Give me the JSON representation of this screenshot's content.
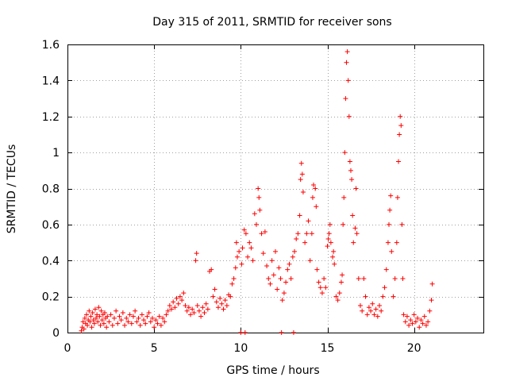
{
  "chart_data": {
    "type": "scatter",
    "title": "Day 315 of 2011, SRMTID for receiver sons",
    "xlabel": "GPS time / hours",
    "ylabel": "SRMTID / TECUs",
    "xlim": [
      0,
      24
    ],
    "ylim": [
      0,
      1.6
    ],
    "x_ticks": [
      0,
      5,
      10,
      15,
      20
    ],
    "x_tick_labels": [
      "0",
      "5",
      "10",
      "15",
      "20"
    ],
    "y_ticks": [
      0,
      0.2,
      0.4,
      0.6,
      0.8,
      1.0,
      1.2,
      1.4,
      1.6
    ],
    "y_tick_labels": [
      "0",
      "0.2",
      "0.4",
      "0.6",
      "0.8",
      "1",
      "1.2",
      "1.4",
      "1.6"
    ],
    "grid": true,
    "legend": "none",
    "marker": "plus",
    "series_color": "#ff0000",
    "points": [
      [
        0.8,
        0.01
      ],
      [
        0.85,
        0.03
      ],
      [
        0.9,
        0.06
      ],
      [
        0.95,
        0.02
      ],
      [
        1.0,
        0.08
      ],
      [
        1.05,
        0.05
      ],
      [
        1.1,
        0.1
      ],
      [
        1.15,
        0.04
      ],
      [
        1.2,
        0.07
      ],
      [
        1.25,
        0.12
      ],
      [
        1.3,
        0.06
      ],
      [
        1.35,
        0.09
      ],
      [
        1.4,
        0.03
      ],
      [
        1.45,
        0.11
      ],
      [
        1.5,
        0.07
      ],
      [
        1.55,
        0.05
      ],
      [
        1.6,
        0.13
      ],
      [
        1.65,
        0.08
      ],
      [
        1.7,
        0.1
      ],
      [
        1.75,
        0.06
      ],
      [
        1.8,
        0.14
      ],
      [
        1.85,
        0.09
      ],
      [
        1.9,
        0.04
      ],
      [
        1.95,
        0.12
      ],
      [
        2.0,
        0.07
      ],
      [
        2.05,
        0.1
      ],
      [
        2.1,
        0.05
      ],
      [
        2.15,
        0.11
      ],
      [
        2.2,
        0.08
      ],
      [
        2.25,
        0.03
      ],
      [
        2.3,
        0.09
      ],
      [
        2.4,
        0.06
      ],
      [
        2.5,
        0.1
      ],
      [
        2.6,
        0.04
      ],
      [
        2.7,
        0.08
      ],
      [
        2.8,
        0.12
      ],
      [
        2.9,
        0.05
      ],
      [
        3.0,
        0.09
      ],
      [
        3.1,
        0.07
      ],
      [
        3.2,
        0.11
      ],
      [
        3.3,
        0.04
      ],
      [
        3.4,
        0.08
      ],
      [
        3.5,
        0.06
      ],
      [
        3.6,
        0.1
      ],
      [
        3.7,
        0.05
      ],
      [
        3.8,
        0.09
      ],
      [
        3.9,
        0.12
      ],
      [
        4.0,
        0.06
      ],
      [
        4.1,
        0.08
      ],
      [
        4.2,
        0.04
      ],
      [
        4.3,
        0.1
      ],
      [
        4.4,
        0.07
      ],
      [
        4.5,
        0.05
      ],
      [
        4.6,
        0.09
      ],
      [
        4.7,
        0.11
      ],
      [
        4.8,
        0.06
      ],
      [
        4.9,
        0.08
      ],
      [
        5.0,
        0.03
      ],
      [
        5.1,
        0.07
      ],
      [
        5.2,
        0.05
      ],
      [
        5.3,
        0.09
      ],
      [
        5.4,
        0.04
      ],
      [
        5.5,
        0.08
      ],
      [
        5.6,
        0.06
      ],
      [
        5.7,
        0.1
      ],
      [
        5.8,
        0.12
      ],
      [
        5.9,
        0.15
      ],
      [
        6.0,
        0.13
      ],
      [
        6.1,
        0.17
      ],
      [
        6.2,
        0.14
      ],
      [
        6.3,
        0.19
      ],
      [
        6.4,
        0.16
      ],
      [
        6.5,
        0.2
      ],
      [
        6.6,
        0.18
      ],
      [
        6.7,
        0.22
      ],
      [
        6.8,
        0.15
      ],
      [
        6.9,
        0.12
      ],
      [
        7.0,
        0.14
      ],
      [
        7.1,
        0.1
      ],
      [
        7.2,
        0.13
      ],
      [
        7.3,
        0.11
      ],
      [
        7.4,
        0.4
      ],
      [
        7.45,
        0.44
      ],
      [
        7.5,
        0.15
      ],
      [
        7.6,
        0.12
      ],
      [
        7.7,
        0.09
      ],
      [
        7.8,
        0.14
      ],
      [
        7.9,
        0.11
      ],
      [
        8.0,
        0.16
      ],
      [
        8.1,
        0.13
      ],
      [
        8.2,
        0.34
      ],
      [
        8.3,
        0.35
      ],
      [
        8.4,
        0.2
      ],
      [
        8.5,
        0.24
      ],
      [
        8.6,
        0.17
      ],
      [
        8.7,
        0.14
      ],
      [
        8.8,
        0.19
      ],
      [
        8.9,
        0.16
      ],
      [
        9.0,
        0.13
      ],
      [
        9.1,
        0.18
      ],
      [
        9.2,
        0.15
      ],
      [
        9.3,
        0.21
      ],
      [
        9.4,
        0.2
      ],
      [
        9.5,
        0.27
      ],
      [
        9.6,
        0.3
      ],
      [
        9.7,
        0.36
      ],
      [
        9.75,
        0.5
      ],
      [
        9.8,
        0.42
      ],
      [
        9.9,
        0.45
      ],
      [
        10.0,
        0.0
      ],
      [
        10.05,
        0.38
      ],
      [
        10.1,
        0.47
      ],
      [
        10.2,
        0.57
      ],
      [
        10.25,
        0.0
      ],
      [
        10.3,
        0.55
      ],
      [
        10.4,
        0.42
      ],
      [
        10.5,
        0.5
      ],
      [
        10.6,
        0.47
      ],
      [
        10.7,
        0.4
      ],
      [
        10.8,
        0.66
      ],
      [
        10.9,
        0.6
      ],
      [
        11.0,
        0.8
      ],
      [
        11.05,
        0.75
      ],
      [
        11.1,
        0.68
      ],
      [
        11.2,
        0.55
      ],
      [
        11.3,
        0.44
      ],
      [
        11.4,
        0.56
      ],
      [
        11.5,
        0.37
      ],
      [
        11.6,
        0.3
      ],
      [
        11.7,
        0.27
      ],
      [
        11.8,
        0.4
      ],
      [
        11.9,
        0.32
      ],
      [
        12.0,
        0.45
      ],
      [
        12.1,
        0.24
      ],
      [
        12.2,
        0.36
      ],
      [
        12.3,
        0.3
      ],
      [
        12.35,
        0.0
      ],
      [
        12.4,
        0.18
      ],
      [
        12.5,
        0.22
      ],
      [
        12.6,
        0.28
      ],
      [
        12.7,
        0.35
      ],
      [
        12.8,
        0.38
      ],
      [
        12.9,
        0.3
      ],
      [
        13.0,
        0.42
      ],
      [
        13.05,
        0.0
      ],
      [
        13.1,
        0.45
      ],
      [
        13.2,
        0.52
      ],
      [
        13.3,
        0.55
      ],
      [
        13.4,
        0.65
      ],
      [
        13.45,
        0.85
      ],
      [
        13.5,
        0.94
      ],
      [
        13.55,
        0.88
      ],
      [
        13.6,
        0.78
      ],
      [
        13.7,
        0.5
      ],
      [
        13.8,
        0.55
      ],
      [
        13.9,
        0.62
      ],
      [
        14.0,
        0.4
      ],
      [
        14.1,
        0.55
      ],
      [
        14.15,
        0.75
      ],
      [
        14.2,
        0.82
      ],
      [
        14.3,
        0.8
      ],
      [
        14.35,
        0.7
      ],
      [
        14.4,
        0.35
      ],
      [
        14.5,
        0.28
      ],
      [
        14.6,
        0.25
      ],
      [
        14.7,
        0.22
      ],
      [
        14.8,
        0.3
      ],
      [
        14.9,
        0.25
      ],
      [
        15.0,
        0.48
      ],
      [
        15.05,
        0.52
      ],
      [
        15.1,
        0.55
      ],
      [
        15.15,
        0.6
      ],
      [
        15.2,
        0.5
      ],
      [
        15.3,
        0.42
      ],
      [
        15.35,
        0.45
      ],
      [
        15.4,
        0.38
      ],
      [
        15.5,
        0.2
      ],
      [
        15.6,
        0.18
      ],
      [
        15.7,
        0.22
      ],
      [
        15.8,
        0.28
      ],
      [
        15.85,
        0.32
      ],
      [
        15.9,
        0.6
      ],
      [
        15.95,
        0.75
      ],
      [
        16.0,
        1.0
      ],
      [
        16.05,
        1.3
      ],
      [
        16.1,
        1.5
      ],
      [
        16.15,
        1.56
      ],
      [
        16.2,
        1.4
      ],
      [
        16.25,
        1.2
      ],
      [
        16.3,
        0.95
      ],
      [
        16.35,
        0.9
      ],
      [
        16.4,
        0.85
      ],
      [
        16.45,
        0.65
      ],
      [
        16.5,
        0.5
      ],
      [
        16.6,
        0.58
      ],
      [
        16.65,
        0.8
      ],
      [
        16.7,
        0.55
      ],
      [
        16.8,
        0.3
      ],
      [
        16.9,
        0.15
      ],
      [
        17.0,
        0.12
      ],
      [
        17.1,
        0.3
      ],
      [
        17.2,
        0.2
      ],
      [
        17.3,
        0.1
      ],
      [
        17.4,
        0.14
      ],
      [
        17.5,
        0.12
      ],
      [
        17.6,
        0.16
      ],
      [
        17.7,
        0.1
      ],
      [
        17.8,
        0.13
      ],
      [
        17.9,
        0.09
      ],
      [
        18.0,
        0.15
      ],
      [
        18.1,
        0.12
      ],
      [
        18.2,
        0.2
      ],
      [
        18.3,
        0.25
      ],
      [
        18.4,
        0.35
      ],
      [
        18.5,
        0.5
      ],
      [
        18.55,
        0.6
      ],
      [
        18.6,
        0.68
      ],
      [
        18.65,
        0.76
      ],
      [
        18.7,
        0.45
      ],
      [
        18.8,
        0.2
      ],
      [
        18.9,
        0.3
      ],
      [
        19.0,
        0.5
      ],
      [
        19.05,
        0.75
      ],
      [
        19.1,
        0.95
      ],
      [
        19.15,
        1.1
      ],
      [
        19.2,
        1.2
      ],
      [
        19.25,
        1.15
      ],
      [
        19.3,
        0.6
      ],
      [
        19.35,
        0.3
      ],
      [
        19.4,
        0.1
      ],
      [
        19.5,
        0.06
      ],
      [
        19.6,
        0.09
      ],
      [
        19.7,
        0.04
      ],
      [
        19.8,
        0.07
      ],
      [
        19.9,
        0.05
      ],
      [
        20.0,
        0.1
      ],
      [
        20.1,
        0.06
      ],
      [
        20.2,
        0.08
      ],
      [
        20.3,
        0.03
      ],
      [
        20.4,
        0.07
      ],
      [
        20.5,
        0.05
      ],
      [
        20.6,
        0.09
      ],
      [
        20.7,
        0.04
      ],
      [
        20.8,
        0.06
      ],
      [
        20.9,
        0.12
      ],
      [
        21.0,
        0.18
      ],
      [
        21.05,
        0.27
      ]
    ]
  }
}
